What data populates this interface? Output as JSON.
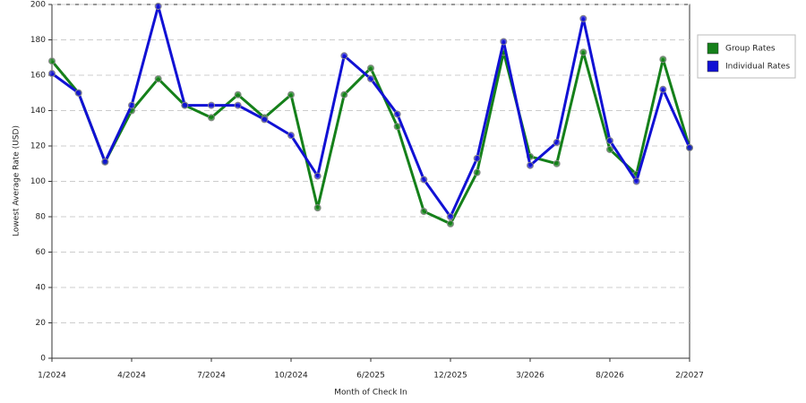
{
  "chart_data": {
    "type": "line",
    "x_label": "Month of Check In",
    "y_label": "Lowest Average Rate (USD)",
    "categories": [
      "1/2024",
      null,
      null,
      "4/2024",
      null,
      null,
      "7/2024",
      null,
      null,
      "10/2024",
      null,
      null,
      "6/2025",
      null,
      null,
      "12/2025",
      null,
      null,
      "3/2026",
      null,
      null,
      "8/2026",
      null,
      null,
      "2/2027"
    ],
    "series": [
      {
        "name": "Group Rates",
        "color": "#15801a",
        "values": [
          168,
          150,
          111,
          140,
          158,
          143,
          136,
          149,
          136,
          149,
          85,
          149,
          164,
          131,
          83,
          76,
          105,
          173,
          114,
          110,
          173,
          118,
          104,
          169,
          119
        ]
      },
      {
        "name": "Individual Rates",
        "color": "#1111d4",
        "values": [
          161,
          150,
          111,
          143,
          199,
          143,
          143,
          143,
          135,
          126,
          103,
          171,
          158,
          138,
          101,
          80,
          113,
          179,
          109,
          122,
          192,
          123,
          100,
          152,
          119
        ]
      }
    ],
    "ylim": [
      0,
      200
    ],
    "yticks": [
      0,
      20,
      40,
      60,
      80,
      100,
      120,
      140,
      160,
      180,
      200
    ],
    "grid": true,
    "legend": "right"
  }
}
